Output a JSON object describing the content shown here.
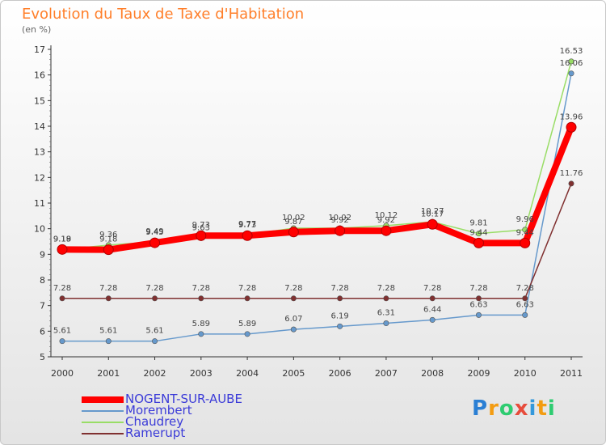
{
  "title": "Evolution du Taux de Taxe d'Habitation",
  "unit": "(en %)",
  "logo": {
    "text": "Proxiti",
    "letter_colors": [
      "#2a7fd4",
      "#f39c12",
      "#2ecc71",
      "#e74c3c",
      "#3498db",
      "#f39c12",
      "#2ecc71"
    ]
  },
  "chart_data": {
    "type": "line",
    "categories": [
      "2000",
      "2001",
      "2002",
      "2003",
      "2004",
      "2005",
      "2006",
      "2007",
      "2008",
      "2009",
      "2010",
      "2011"
    ],
    "ylim": [
      5,
      17
    ],
    "yticks": [
      5,
      6,
      7,
      8,
      9,
      10,
      11,
      12,
      13,
      14,
      15,
      16,
      17
    ],
    "grid": false,
    "legend_position": "bottom-left",
    "series": [
      {
        "name": "NOGENT-SUR-AUBE",
        "color": "#ff0000",
        "width": 8,
        "values": [
          9.19,
          9.18,
          9.45,
          9.73,
          9.73,
          9.87,
          9.92,
          9.92,
          10.17,
          9.44,
          9.44,
          13.96
        ],
        "labels": [
          "9.19",
          "9.18",
          "9.45",
          "9.73",
          "9.73",
          "9.87",
          "9.92",
          "9.92",
          "10.17",
          "9.44",
          "9.44",
          "13.96"
        ]
      },
      {
        "name": "Morembert",
        "color": "#6699cc",
        "width": 1.5,
        "values": [
          5.61,
          5.61,
          5.61,
          5.89,
          5.89,
          6.07,
          6.19,
          6.31,
          6.44,
          6.63,
          6.63,
          16.06
        ],
        "labels": [
          "5.61",
          "5.61",
          "5.61",
          "5.89",
          "5.89",
          "6.07",
          "6.19",
          "6.31",
          "6.44",
          "6.63",
          "6.63",
          "16.06"
        ]
      },
      {
        "name": "Chaudrey",
        "color": "#99dd66",
        "width": 1.5,
        "values": [
          9.18,
          9.36,
          9.49,
          9.63,
          9.77,
          10.02,
          10.02,
          10.12,
          10.27,
          9.81,
          9.96,
          16.53
        ],
        "labels": [
          "9.18",
          "9.36",
          "9.49",
          "9.63",
          "9.77",
          "10.02",
          "10.02",
          "10.12",
          "10.27",
          "9.81",
          "9.96",
          "16.53"
        ]
      },
      {
        "name": "Ramerupt",
        "color": "#803030",
        "width": 1.5,
        "values": [
          7.28,
          7.28,
          7.28,
          7.28,
          7.28,
          7.28,
          7.28,
          7.28,
          7.28,
          7.28,
          7.28,
          11.76
        ],
        "labels": [
          "7.28",
          "7.28",
          "7.28",
          "7.28",
          "7.28",
          "7.28",
          "7.28",
          "7.28",
          "7.28",
          "7.28",
          "7.28",
          "11.76"
        ]
      }
    ]
  }
}
